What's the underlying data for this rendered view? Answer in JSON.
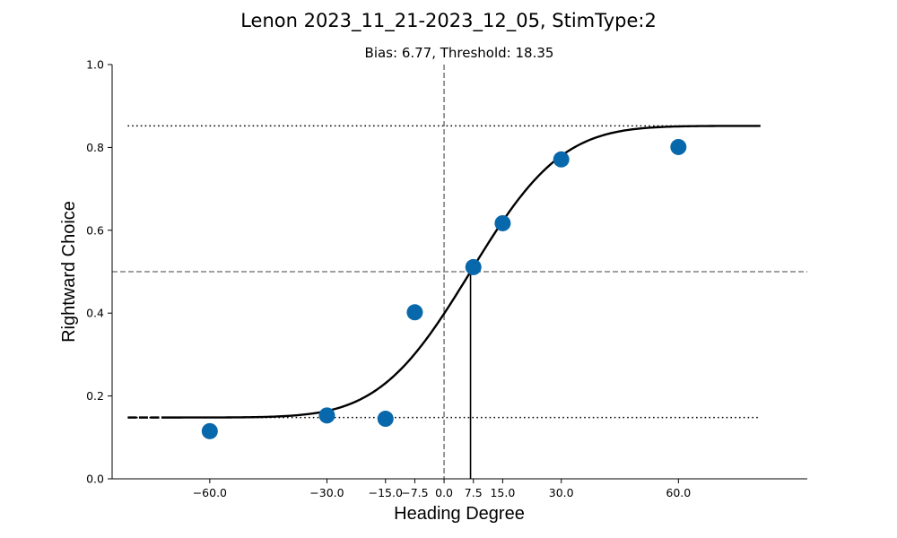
{
  "chart_data": {
    "type": "scatter",
    "title": "Lenon 2023_11_21-2023_12_05, StimType:2",
    "subtitle": "Bias: 6.77, Threshold: 18.35",
    "xlabel": "Heading Degree",
    "ylabel": "Rightward Choice",
    "xlim": [
      -85,
      93
    ],
    "ylim": [
      0,
      1.0
    ],
    "x_ticks": [
      -60,
      -30,
      -15,
      -7.5,
      0,
      7.5,
      15,
      30,
      60
    ],
    "x_tick_labels": [
      "−60.0",
      "−30.0",
      "−15.0",
      "−7.5",
      "0.0",
      "7.5",
      "15.0",
      "30.0",
      "60.0"
    ],
    "y_ticks": [
      0,
      0.2,
      0.4,
      0.6,
      0.8,
      1.0
    ],
    "y_tick_labels": [
      "0.0",
      "0.2",
      "0.4",
      "0.6",
      "0.8",
      "1.0"
    ],
    "grid": false,
    "legend": "none",
    "series": [
      {
        "kind": "points",
        "color": "#0868ac",
        "x": [
          -60,
          -30,
          -15,
          -7.5,
          7.5,
          15,
          30,
          60
        ],
        "y": [
          0.115,
          0.153,
          0.145,
          0.402,
          0.511,
          0.617,
          0.771,
          0.801
        ]
      }
    ],
    "fit": {
      "kind": "cumulative-gaussian",
      "color": "#000000",
      "bias": 6.77,
      "threshold": 18.35,
      "lower": 0.148,
      "upper": 0.852,
      "x_range": [
        -81,
        81
      ]
    },
    "reference_lines": {
      "x0": 0,
      "y_half": 0.5,
      "lower_asymptote": 0.148,
      "upper_asymptote": 0.852,
      "bias_x": 6.77
    }
  }
}
